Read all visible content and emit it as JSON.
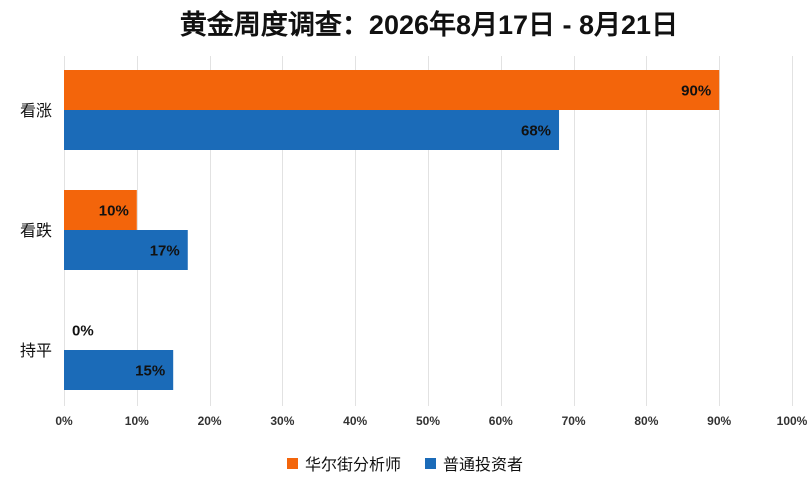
{
  "chart_data": {
    "type": "bar",
    "orientation": "horizontal",
    "title": "黄金周度调查：2026年8月17日 - 8月21日",
    "categories": [
      "看涨",
      "看跌",
      "持平"
    ],
    "series": [
      {
        "name": "华尔街分析师",
        "color": "#F3650B",
        "values": [
          90,
          10,
          0
        ],
        "labels": [
          "90%",
          "10%",
          "0%"
        ]
      },
      {
        "name": "普通投资者",
        "color": "#1B6BB8",
        "values": [
          68,
          17,
          15
        ],
        "labels": [
          "68%",
          "17%",
          "15%"
        ]
      }
    ],
    "xlim": [
      0,
      100
    ],
    "xticks": [
      "0%",
      "10%",
      "20%",
      "30%",
      "40%",
      "50%",
      "60%",
      "70%",
      "80%",
      "90%",
      "100%"
    ],
    "grid": true,
    "legend": "bottom"
  }
}
